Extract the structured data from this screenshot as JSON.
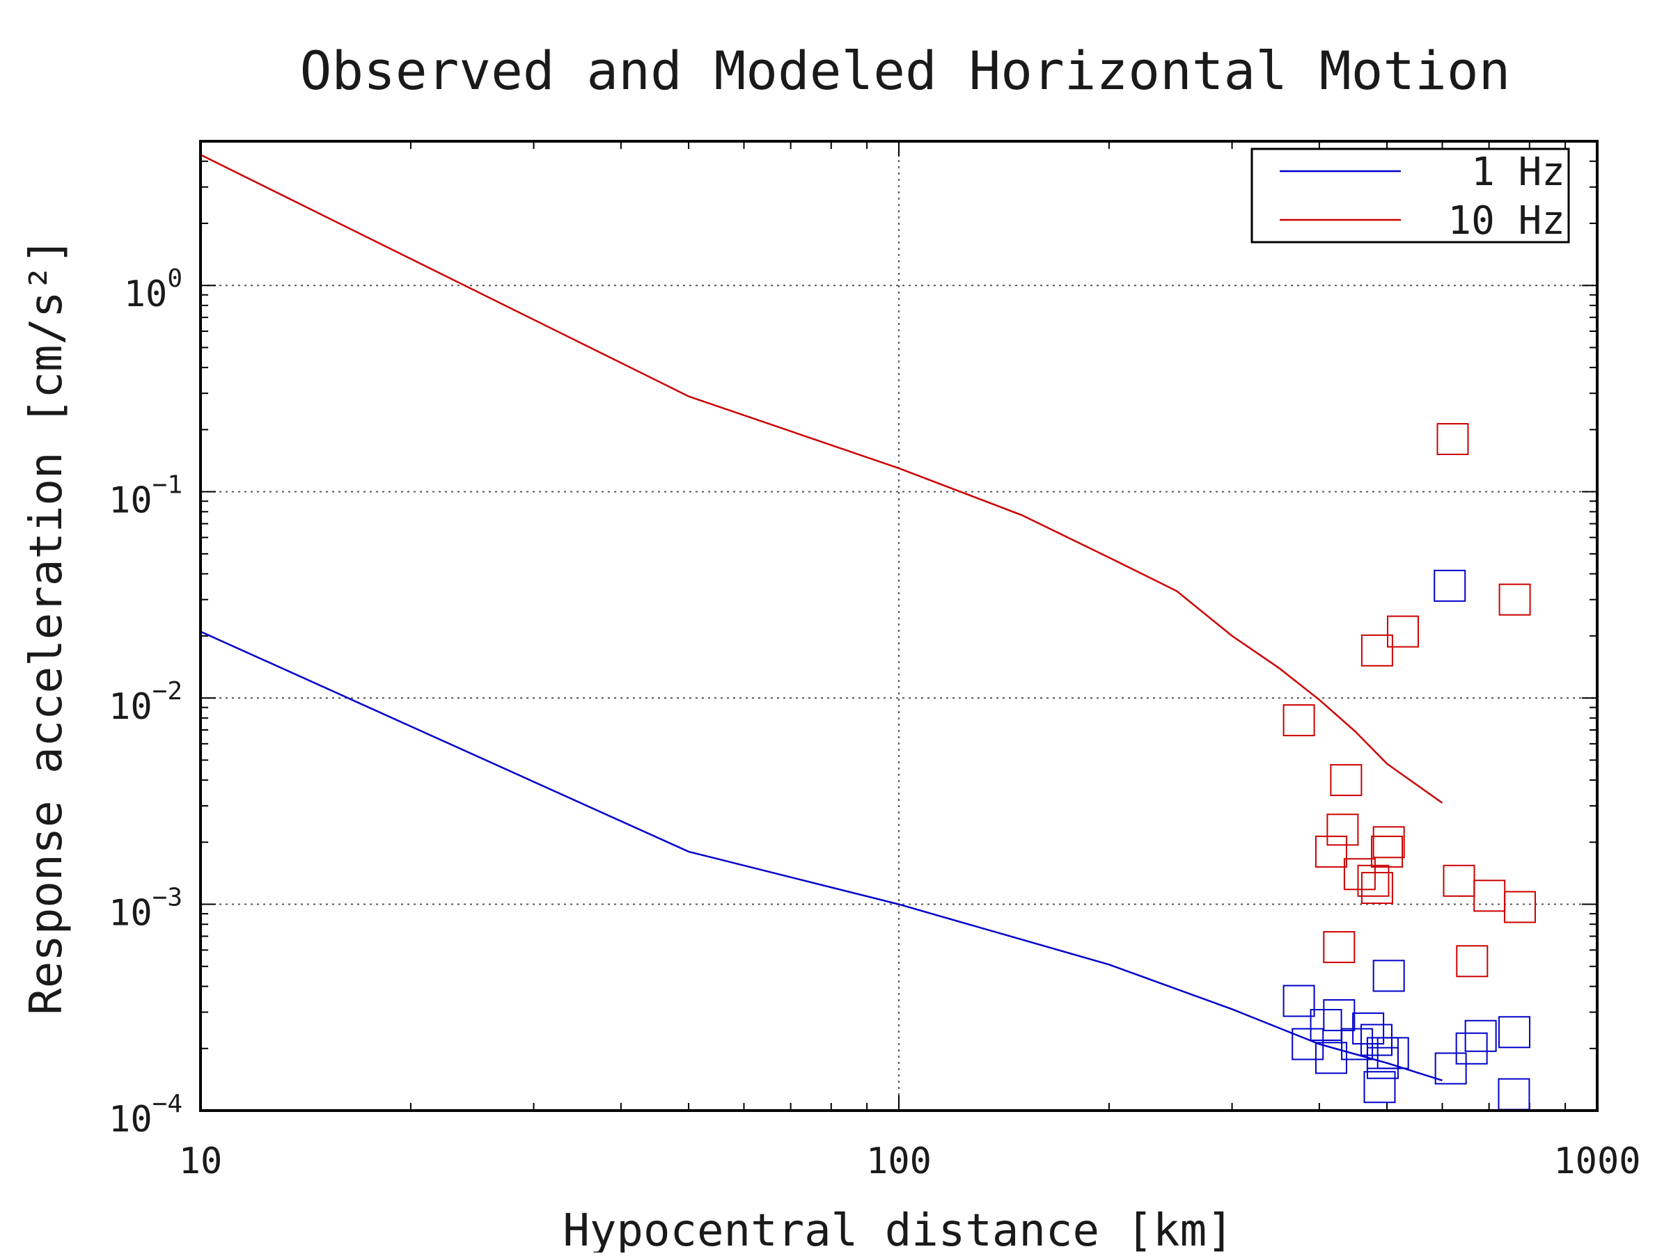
{
  "chart_data": {
    "type": "scatter",
    "title": "Observed and Modeled Horizontal Motion",
    "xlabel": "Hypocentral distance [km]",
    "ylabel": "Response acceleration [cm/s²]",
    "xscale": "log",
    "yscale": "log",
    "xlim": [
      10,
      1000
    ],
    "ylim": [
      0.0001,
      5
    ],
    "x_ticks": [
      {
        "value": 10,
        "label": "10"
      },
      {
        "value": 100,
        "label": "100"
      },
      {
        "value": 1000,
        "label": "1000"
      }
    ],
    "y_ticks": [
      {
        "value": 1,
        "base": "10",
        "exp": "0"
      },
      {
        "value": 0.1,
        "base": "10",
        "exp": "−1"
      },
      {
        "value": 0.01,
        "base": "10",
        "exp": "−2"
      },
      {
        "value": 0.001,
        "base": "10",
        "exp": "−3"
      },
      {
        "value": 0.0001,
        "base": "10",
        "exp": "−4"
      }
    ],
    "grid": true,
    "legend_position": "top-right",
    "series": [
      {
        "name": "1 Hz",
        "color": "#0000cc",
        "line": [
          [
            10,
            0.021
          ],
          [
            50,
            0.0018
          ],
          [
            100,
            0.001
          ],
          [
            200,
            0.00051
          ],
          [
            300,
            0.00031
          ],
          [
            400,
            0.00021
          ],
          [
            500,
            0.00017
          ],
          [
            600,
            0.00014
          ]
        ],
        "observed": [
          [
            374,
            0.00034
          ],
          [
            409,
            0.00026
          ],
          [
            427,
            0.00029
          ],
          [
            385,
            0.00021
          ],
          [
            416,
            0.00018
          ],
          [
            453,
            0.00021
          ],
          [
            470,
            0.00025
          ],
          [
            483,
            0.00022
          ],
          [
            493,
            0.00019
          ],
          [
            510,
            0.00019
          ],
          [
            493,
            0.00017
          ],
          [
            488,
            0.00013
          ],
          [
            503,
            0.00045
          ],
          [
            615,
            0.035
          ],
          [
            617,
            0.00016
          ],
          [
            661,
            0.0002
          ],
          [
            681,
            0.00023
          ],
          [
            761,
            0.00024
          ],
          [
            760,
            0.00012
          ]
        ]
      },
      {
        "name": "10 Hz",
        "color": "#cc0000",
        "line": [
          [
            10,
            4.3
          ],
          [
            50,
            0.29
          ],
          [
            100,
            0.13
          ],
          [
            150,
            0.077
          ],
          [
            200,
            0.048
          ],
          [
            250,
            0.033
          ],
          [
            300,
            0.02
          ],
          [
            350,
            0.014
          ],
          [
            400,
            0.0098
          ],
          [
            450,
            0.0069
          ],
          [
            500,
            0.0048
          ],
          [
            600,
            0.0031
          ]
        ],
        "observed": [
          [
            374,
            0.0078
          ],
          [
            416,
            0.0018
          ],
          [
            427,
            0.00062
          ],
          [
            432,
            0.0023
          ],
          [
            437,
            0.004
          ],
          [
            457,
            0.0014
          ],
          [
            478,
            0.0013
          ],
          [
            484,
            0.0012
          ],
          [
            484,
            0.017
          ],
          [
            500,
            0.0018
          ],
          [
            503,
            0.002
          ],
          [
            527,
            0.021
          ],
          [
            621,
            0.18
          ],
          [
            634,
            0.0013
          ],
          [
            662,
            0.00053
          ],
          [
            701,
            0.0011
          ],
          [
            762,
            0.03
          ],
          [
            775,
            0.00097
          ]
        ]
      }
    ]
  }
}
